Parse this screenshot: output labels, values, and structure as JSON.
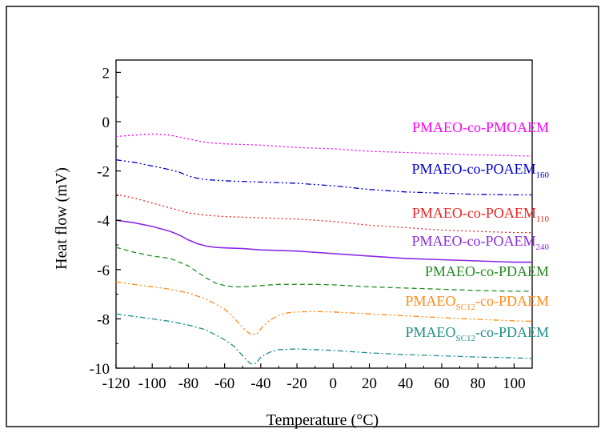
{
  "chart_data": {
    "type": "line",
    "xlabel": "Temperature (°C)",
    "ylabel": "Heat flow (mV)",
    "xlim": [
      -120,
      110
    ],
    "ylim": [
      -10,
      2.5
    ],
    "xticks": [
      -120,
      -100,
      -80,
      -60,
      -40,
      -20,
      0,
      20,
      40,
      60,
      80,
      100
    ],
    "xtick_labels": [
      "-120",
      "-100",
      "-80",
      "-60",
      "-40",
      "-20",
      "0",
      "20",
      "40",
      "60",
      "80",
      "100"
    ],
    "yticks": [
      -10,
      -8,
      -6,
      -4,
      -2,
      0,
      2
    ],
    "ytick_labels": [
      "-10",
      "-8",
      "-6",
      "-4",
      "-2",
      "0",
      "2"
    ],
    "grid": false,
    "legend": "labels placed at the right end of each curve",
    "series": [
      {
        "name": "PMAEO-co-PMOAEM",
        "label_main": "PMAEO-co-PMOAEM",
        "label_sub": "",
        "label_tail": "",
        "color": "#ff00ff",
        "style": "dot",
        "x": [
          -120,
          -110,
          -100,
          -90,
          -80,
          -70,
          -60,
          -40,
          -20,
          0,
          20,
          40,
          60,
          80,
          100,
          110
        ],
        "y": [
          -0.6,
          -0.55,
          -0.5,
          -0.55,
          -0.7,
          -0.85,
          -0.9,
          -0.95,
          -1.05,
          -1.1,
          -1.2,
          -1.25,
          -1.3,
          -1.35,
          -1.38,
          -1.4
        ]
      },
      {
        "name": "PMAEO-co-POAEM160",
        "label_main": "PMAEO-co-POAEM",
        "label_sub": "160",
        "label_tail": "",
        "color": "#0000cc",
        "style": "dashdotdot",
        "x": [
          -120,
          -110,
          -100,
          -90,
          -85,
          -80,
          -75,
          -70,
          -60,
          -40,
          -20,
          0,
          20,
          40,
          60,
          80,
          100,
          110
        ],
        "y": [
          -1.55,
          -1.65,
          -1.8,
          -1.95,
          -2.05,
          -2.2,
          -2.3,
          -2.35,
          -2.4,
          -2.45,
          -2.5,
          -2.6,
          -2.75,
          -2.85,
          -2.9,
          -2.95,
          -2.97,
          -2.97
        ]
      },
      {
        "name": "PMAEO-co-POAEM110",
        "label_main": "PMAEO-co-POAEM",
        "label_sub": "110",
        "label_tail": "",
        "color": "#ee2222",
        "style": "dot",
        "x": [
          -120,
          -110,
          -100,
          -90,
          -80,
          -70,
          -60,
          -40,
          -20,
          0,
          20,
          40,
          60,
          80,
          100,
          110
        ],
        "y": [
          -2.95,
          -3.1,
          -3.3,
          -3.5,
          -3.7,
          -3.8,
          -3.85,
          -3.9,
          -3.95,
          -4.05,
          -4.2,
          -4.3,
          -4.4,
          -4.45,
          -4.5,
          -4.5
        ]
      },
      {
        "name": "PMAEO-co-POAEM240",
        "label_main": "PMAEO-co-POAEM",
        "label_sub": "240",
        "label_tail": "",
        "color": "#8a2be2",
        "style": "solid",
        "x": [
          -120,
          -110,
          -100,
          -90,
          -85,
          -80,
          -75,
          -70,
          -65,
          -60,
          -50,
          -40,
          -20,
          0,
          20,
          40,
          60,
          80,
          100,
          110
        ],
        "y": [
          -4.0,
          -4.1,
          -4.25,
          -4.45,
          -4.6,
          -4.8,
          -4.95,
          -5.05,
          -5.1,
          -5.12,
          -5.15,
          -5.2,
          -5.25,
          -5.35,
          -5.45,
          -5.55,
          -5.6,
          -5.65,
          -5.7,
          -5.7
        ]
      },
      {
        "name": "PMAEO-co-PDAEM",
        "label_main": "PMAEO-co-PDAEM",
        "label_sub": "",
        "label_tail": "",
        "color": "#228b22",
        "style": "dash",
        "x": [
          -120,
          -110,
          -100,
          -90,
          -80,
          -75,
          -70,
          -65,
          -60,
          -55,
          -50,
          -40,
          -30,
          -20,
          -10,
          0,
          20,
          40,
          60,
          80,
          100,
          110
        ],
        "y": [
          -5.1,
          -5.3,
          -5.45,
          -5.55,
          -5.85,
          -6.1,
          -6.35,
          -6.55,
          -6.65,
          -6.7,
          -6.7,
          -6.65,
          -6.6,
          -6.6,
          -6.6,
          -6.62,
          -6.7,
          -6.75,
          -6.8,
          -6.85,
          -6.88,
          -6.88
        ]
      },
      {
        "name": "PMAEOSC12-co-PDAEM (orange)",
        "label_main": "PMAEO",
        "label_sub": "SC12",
        "label_tail": "-co-PDAEM",
        "color": "#ff8c1a",
        "style": "dashdotdot",
        "x": [
          -120,
          -110,
          -100,
          -90,
          -80,
          -70,
          -60,
          -55,
          -50,
          -48,
          -45,
          -42,
          -40,
          -35,
          -30,
          -25,
          -20,
          -10,
          0,
          20,
          40,
          60,
          80,
          100,
          110
        ],
        "y": [
          -6.5,
          -6.6,
          -6.7,
          -6.8,
          -6.95,
          -7.2,
          -7.6,
          -7.95,
          -8.35,
          -8.5,
          -8.65,
          -8.6,
          -8.4,
          -8.05,
          -7.85,
          -7.75,
          -7.72,
          -7.7,
          -7.72,
          -7.8,
          -7.88,
          -7.95,
          -8.02,
          -8.08,
          -8.1
        ]
      },
      {
        "name": "PMAEOSC12-co-PDAEM (teal)",
        "label_main": "PMAEO",
        "label_sub": "SC12",
        "label_tail": "-co-PDAEM",
        "color": "#1f8f8a",
        "style": "dashdot",
        "x": [
          -120,
          -110,
          -100,
          -90,
          -80,
          -70,
          -60,
          -55,
          -50,
          -48,
          -46,
          -44,
          -42,
          -40,
          -35,
          -30,
          -20,
          0,
          20,
          40,
          60,
          80,
          100,
          110
        ],
        "y": [
          -7.8,
          -7.9,
          -8.0,
          -8.1,
          -8.25,
          -8.45,
          -8.85,
          -9.1,
          -9.5,
          -9.65,
          -9.8,
          -9.85,
          -9.75,
          -9.55,
          -9.35,
          -9.25,
          -9.22,
          -9.28,
          -9.38,
          -9.45,
          -9.5,
          -9.55,
          -9.58,
          -9.6
        ]
      }
    ]
  }
}
